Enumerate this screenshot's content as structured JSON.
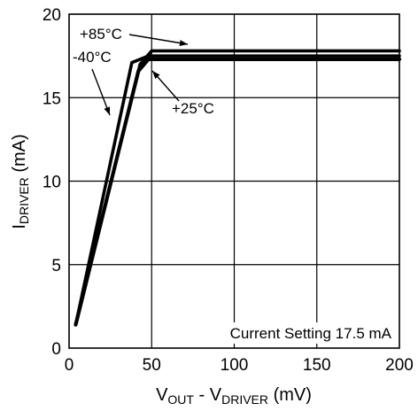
{
  "chart_data": {
    "type": "line",
    "xlabel": {
      "main": "V",
      "sub1": "OUT",
      "mid": " - V",
      "sub2": "DRIVER",
      "tail": " (mV)"
    },
    "ylabel": {
      "main": "I",
      "sub": "DRIVER",
      "tail": " (mA)"
    },
    "xlim": [
      0,
      200
    ],
    "ylim": [
      0,
      20
    ],
    "xticks": [
      "0",
      "50",
      "100",
      "150",
      "200"
    ],
    "yticks": [
      "0",
      "5",
      "10",
      "15",
      "20"
    ],
    "grid": true,
    "note": "Current Setting 17.5 mA",
    "series": [
      {
        "name": "+85°C",
        "x": [
          4,
          43,
          50,
          200
        ],
        "y": [
          1.4,
          17.0,
          17.8,
          17.8
        ]
      },
      {
        "name": "-40°C",
        "x": [
          4,
          38,
          48,
          200
        ],
        "y": [
          1.4,
          17.1,
          17.5,
          17.5
        ]
      },
      {
        "name": "+25°C",
        "x": [
          4,
          42,
          48,
          200
        ],
        "y": [
          1.4,
          16.6,
          17.3,
          17.3
        ]
      }
    ],
    "annotations": [
      {
        "text": "+85°C",
        "series": 0
      },
      {
        "text": "-40°C",
        "series": 1
      },
      {
        "text": "+25°C",
        "series": 2
      }
    ]
  }
}
